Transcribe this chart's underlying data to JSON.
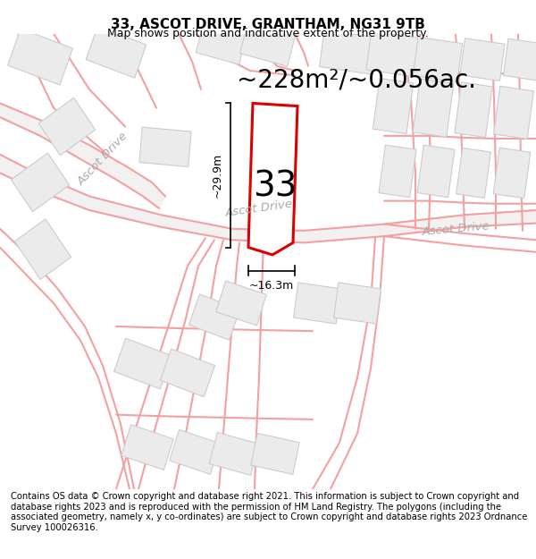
{
  "title_line1": "33, ASCOT DRIVE, GRANTHAM, NG31 9TB",
  "title_line2": "Map shows position and indicative extent of the property.",
  "footer_text": "Contains OS data © Crown copyright and database right 2021. This information is subject to Crown copyright and database rights 2023 and is reproduced with the permission of HM Land Registry. The polygons (including the associated geometry, namely x, y co-ordinates) are subject to Crown copyright and database rights 2023 Ordnance Survey 100026316.",
  "area_label": "~228m²/~0.056ac.",
  "number_label": "33",
  "dim_width_label": "~16.3m",
  "dim_height_label": "~29.9m",
  "road_label_left": "Ascot Drive",
  "road_label_center": "Ascot Drive",
  "road_label_right": "Ascot Drive",
  "bg_color": "#ffffff",
  "road_line_color": "#f0b8b8",
  "road_center_color": "#e8e8e8",
  "road_edge_color": "#e0a0a0",
  "plot_fill": "white",
  "plot_stroke": "#dd0000",
  "building_fill": "#ebebeb",
  "building_stroke": "#cccccc",
  "road_label_color": "#aaaaaa",
  "area_fontsize": 20,
  "number_fontsize": 28,
  "road_fontsize": 9.5,
  "dim_fontsize": 9,
  "title_fontsize": 11,
  "subtitle_fontsize": 9,
  "footer_fontsize": 7.2
}
